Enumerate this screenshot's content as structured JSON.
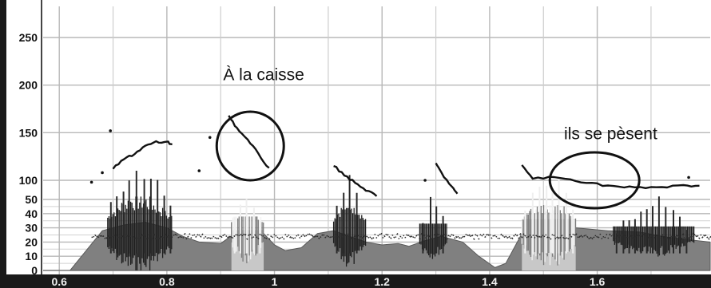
{
  "chart_data": {
    "type": "area",
    "title": "",
    "xlabel": "",
    "ylabel": "",
    "xlim": [
      0.57,
      1.81
    ],
    "x_ticks": [
      "0.6",
      "0.8",
      "1",
      "1.2",
      "1.4",
      "1.6"
    ],
    "y_ticks_upper": [
      "250",
      "200",
      "150",
      "100"
    ],
    "y_ticks_lower": [
      "50",
      "40",
      "30",
      "20",
      "10",
      "0"
    ],
    "upper_ylim": [
      50,
      270
    ],
    "lower_ylim": [
      0,
      55
    ],
    "grid": true,
    "colors": {
      "envelope": "#808080",
      "waveform": "#1e1e1e",
      "pitch": "#111111",
      "grid": "#b8b8b8",
      "axis_band": "#1a1a1a"
    },
    "intensity_envelope": {
      "x": [
        0.57,
        0.62,
        0.65,
        0.68,
        0.72,
        0.76,
        0.8,
        0.83,
        0.86,
        0.9,
        0.93,
        0.98,
        1.0,
        1.02,
        1.05,
        1.08,
        1.11,
        1.14,
        1.17,
        1.2,
        1.23,
        1.25,
        1.28,
        1.31,
        1.35,
        1.38,
        1.41,
        1.43,
        1.46,
        1.5,
        1.56,
        1.62,
        1.68,
        1.72,
        1.76,
        1.81
      ],
      "y": [
        0,
        0,
        14,
        28,
        32,
        34,
        30,
        24,
        20,
        19,
        27,
        26,
        18,
        14,
        16,
        26,
        28,
        24,
        20,
        18,
        19,
        17,
        21,
        24,
        20,
        10,
        2,
        5,
        26,
        29,
        30,
        28,
        27,
        24,
        22,
        20
      ]
    },
    "voiced_segments": [
      {
        "x_start": 0.69,
        "x_end": 0.81,
        "peak": 44
      },
      {
        "x_start": 0.92,
        "x_end": 0.98,
        "peak": 30
      },
      {
        "x_start": 1.11,
        "x_end": 1.17,
        "peak": 36
      },
      {
        "x_start": 1.27,
        "x_end": 1.32,
        "peak": 25
      },
      {
        "x_start": 1.46,
        "x_end": 1.56,
        "peak": 38
      },
      {
        "x_start": 1.63,
        "x_end": 1.78,
        "peak": 23
      }
    ],
    "pitch_contours": [
      {
        "x": [
          0.7,
          0.72,
          0.74,
          0.76,
          0.78,
          0.8,
          0.81
        ],
        "y": [
          112,
          122,
          128,
          136,
          140,
          140,
          138
        ]
      },
      {
        "x": [
          0.915,
          0.93,
          0.95,
          0.97,
          0.99
        ],
        "y": [
          168,
          155,
          142,
          128,
          112
        ]
      },
      {
        "x": [
          1.11,
          1.13,
          1.15,
          1.17,
          1.19
        ],
        "y": [
          115,
          106,
          97,
          90,
          83
        ]
      },
      {
        "x": [
          1.3,
          1.31,
          1.33,
          1.34
        ],
        "y": [
          118,
          108,
          93,
          85
        ]
      },
      {
        "x": [
          1.46,
          1.48,
          1.52,
          1.56,
          1.6,
          1.64,
          1.68,
          1.72,
          1.76,
          1.79
        ],
        "y": [
          116,
          102,
          103,
          100,
          96,
          93,
          92,
          93,
          94,
          95
        ]
      }
    ],
    "annotations": [
      {
        "text": "À la caisse",
        "x": 0.98,
        "y": 205
      },
      {
        "text": "ils se pèsent",
        "x": 1.625,
        "y": 143
      }
    ],
    "circles": [
      {
        "x": 0.955,
        "y": 136
      },
      {
        "x": 1.595,
        "y": 100
      }
    ]
  }
}
